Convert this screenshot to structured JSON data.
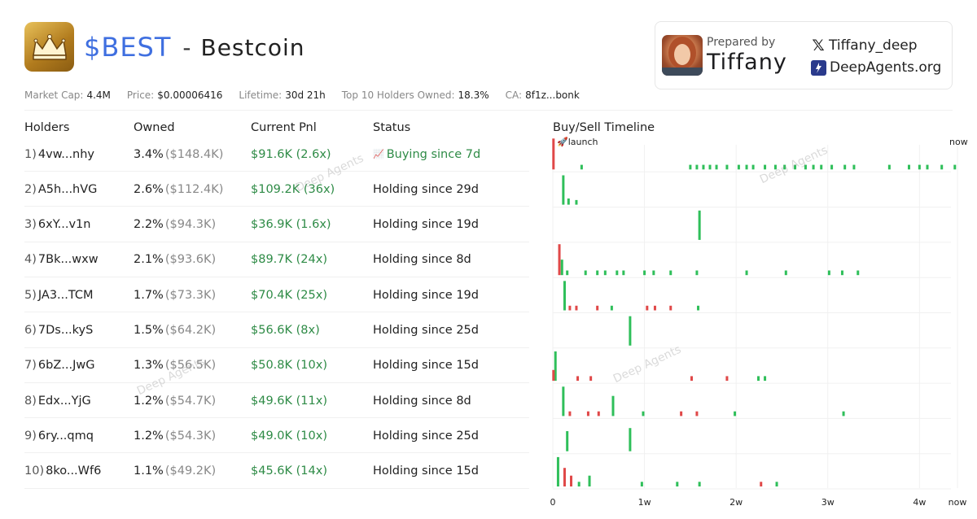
{
  "header": {
    "ticker": "$BEST",
    "separator": "-",
    "coin_name": "Bestcoin"
  },
  "prepared": {
    "label": "Prepared by",
    "name": "Tiffany",
    "x_handle": "Tiffany_deep",
    "site": "DeepAgents.org"
  },
  "stats": [
    {
      "label": "Market Cap:",
      "value": "4.4M"
    },
    {
      "label": "Price:",
      "value": "$0.00006416"
    },
    {
      "label": "Lifetime:",
      "value": "30d 21h"
    },
    {
      "label": "Top 10 Holders Owned:",
      "value": "18.3%"
    },
    {
      "label": "CA:",
      "value": "8f1z...bonk"
    }
  ],
  "table": {
    "headers": {
      "holders": "Holders",
      "owned": "Owned",
      "pnl": "Current Pnl",
      "status": "Status"
    },
    "rows": [
      {
        "rank": "1)",
        "addr": "4vw...nhy",
        "pct": "3.4%",
        "usd": "($148.4K)",
        "pnl": "$91.6K (2.6x)",
        "status": "Buying since 7d",
        "buying": true
      },
      {
        "rank": "2)",
        "addr": "A5h...hVG",
        "pct": "2.6%",
        "usd": "($112.4K)",
        "pnl": "$109.2K (36x)",
        "status": "Holding since 29d",
        "buying": false
      },
      {
        "rank": "3)",
        "addr": "6xY...v1n",
        "pct": "2.2%",
        "usd": "($94.3K)",
        "pnl": "$36.9K (1.6x)",
        "status": "Holding since 19d",
        "buying": false
      },
      {
        "rank": "4)",
        "addr": "7Bk...wxw",
        "pct": "2.1%",
        "usd": "($93.6K)",
        "pnl": "$89.7K (24x)",
        "status": "Holding since 8d",
        "buying": false
      },
      {
        "rank": "5)",
        "addr": "JA3...TCM",
        "pct": "1.7%",
        "usd": "($73.3K)",
        "pnl": "$70.4K (25x)",
        "status": "Holding since 19d",
        "buying": false
      },
      {
        "rank": "6)",
        "addr": "7Ds...kyS",
        "pct": "1.5%",
        "usd": "($64.2K)",
        "pnl": "$56.6K (8x)",
        "status": "Holding since 25d",
        "buying": false
      },
      {
        "rank": "7)",
        "addr": "6bZ...JwG",
        "pct": "1.3%",
        "usd": "($56.5K)",
        "pnl": "$50.8K (10x)",
        "status": "Holding since 15d",
        "buying": false
      },
      {
        "rank": "8)",
        "addr": "Edx...YjG",
        "pct": "1.2%",
        "usd": "($54.7K)",
        "pnl": "$49.6K (11x)",
        "status": "Holding since 8d",
        "buying": false
      },
      {
        "rank": "9)",
        "addr": "6ry...qmq",
        "pct": "1.2%",
        "usd": "($54.3K)",
        "pnl": "$49.0K (10x)",
        "status": "Holding since 25d",
        "buying": false
      },
      {
        "rank": "10)",
        "addr": "8ko...Wf6",
        "pct": "1.1%",
        "usd": "($49.2K)",
        "pnl": "$45.6K (14x)",
        "status": "Holding since 15d",
        "buying": false
      }
    ]
  },
  "timeline": {
    "title": "Buy/Sell Timeline",
    "launch_label": "launch",
    "now_label": "now",
    "x_ticks": [
      "0",
      "1w",
      "2w",
      "3w",
      "4w",
      "now"
    ]
  },
  "watermark": "Deep Agents",
  "colors": {
    "buy": "#2fbf5a",
    "sell": "#e04848",
    "ticker": "#3f6fe0",
    "pnl": "#2e8b46"
  },
  "chart_data": {
    "type": "scatter",
    "title": "Buy/Sell Timeline",
    "x_unit": "days since launch",
    "xlim": [
      0,
      30.9
    ],
    "x_ticks": [
      0,
      7,
      14,
      21,
      28
    ],
    "x_tick_labels": [
      "0",
      "1w",
      "2w",
      "3w",
      "4w"
    ],
    "end_label": "now",
    "series": [
      {
        "name": "buy",
        "color": "#2fbf5a"
      },
      {
        "name": "sell",
        "color": "#e04848"
      }
    ],
    "rows": [
      {
        "holder": "4vw...nhy",
        "events": [
          {
            "t": 0.05,
            "type": "sell",
            "size": 1.0
          },
          {
            "t": 2.2,
            "type": "buy",
            "size": 0.15
          },
          {
            "t": 10.5,
            "type": "buy",
            "size": 0.15
          },
          {
            "t": 11.0,
            "type": "buy",
            "size": 0.15
          },
          {
            "t": 11.5,
            "type": "buy",
            "size": 0.15
          },
          {
            "t": 12.0,
            "type": "buy",
            "size": 0.15
          },
          {
            "t": 12.5,
            "type": "buy",
            "size": 0.15
          },
          {
            "t": 13.3,
            "type": "buy",
            "size": 0.15
          },
          {
            "t": 14.2,
            "type": "buy",
            "size": 0.15
          },
          {
            "t": 14.8,
            "type": "buy",
            "size": 0.15
          },
          {
            "t": 15.3,
            "type": "buy",
            "size": 0.15
          },
          {
            "t": 16.2,
            "type": "buy",
            "size": 0.15
          },
          {
            "t": 17.0,
            "type": "buy",
            "size": 0.15
          },
          {
            "t": 17.7,
            "type": "buy",
            "size": 0.15
          },
          {
            "t": 18.5,
            "type": "buy",
            "size": 0.15
          },
          {
            "t": 19.3,
            "type": "buy",
            "size": 0.15
          },
          {
            "t": 19.9,
            "type": "buy",
            "size": 0.15
          },
          {
            "t": 20.5,
            "type": "buy",
            "size": 0.15
          },
          {
            "t": 21.3,
            "type": "buy",
            "size": 0.15
          },
          {
            "t": 22.3,
            "type": "buy",
            "size": 0.15
          },
          {
            "t": 23.0,
            "type": "buy",
            "size": 0.15
          },
          {
            "t": 25.7,
            "type": "buy",
            "size": 0.15
          },
          {
            "t": 27.2,
            "type": "buy",
            "size": 0.15
          },
          {
            "t": 28.0,
            "type": "buy",
            "size": 0.15
          },
          {
            "t": 28.6,
            "type": "buy",
            "size": 0.15
          },
          {
            "t": 29.7,
            "type": "buy",
            "size": 0.15
          },
          {
            "t": 30.7,
            "type": "buy",
            "size": 0.15
          }
        ]
      },
      {
        "holder": "A5h...hVG",
        "events": [
          {
            "t": 0.8,
            "type": "buy",
            "size": 0.95
          },
          {
            "t": 1.2,
            "type": "buy",
            "size": 0.2
          },
          {
            "t": 1.8,
            "type": "buy",
            "size": 0.15
          }
        ]
      },
      {
        "holder": "6xY...v1n",
        "events": [
          {
            "t": 11.2,
            "type": "buy",
            "size": 0.95
          }
        ]
      },
      {
        "holder": "7Bk...wxw",
        "events": [
          {
            "t": 0.5,
            "type": "sell",
            "size": 1.0
          },
          {
            "t": 0.7,
            "type": "buy",
            "size": 0.5
          },
          {
            "t": 1.1,
            "type": "buy",
            "size": 0.15
          },
          {
            "t": 2.5,
            "type": "buy",
            "size": 0.15
          },
          {
            "t": 3.4,
            "type": "buy",
            "size": 0.15
          },
          {
            "t": 4.0,
            "type": "buy",
            "size": 0.15
          },
          {
            "t": 4.9,
            "type": "buy",
            "size": 0.15
          },
          {
            "t": 5.4,
            "type": "buy",
            "size": 0.15
          },
          {
            "t": 7.0,
            "type": "buy",
            "size": 0.15
          },
          {
            "t": 7.7,
            "type": "buy",
            "size": 0.15
          },
          {
            "t": 9.0,
            "type": "buy",
            "size": 0.15
          },
          {
            "t": 11.0,
            "type": "buy",
            "size": 0.15
          },
          {
            "t": 14.8,
            "type": "buy",
            "size": 0.15
          },
          {
            "t": 17.8,
            "type": "buy",
            "size": 0.15
          },
          {
            "t": 21.1,
            "type": "buy",
            "size": 0.15
          },
          {
            "t": 22.1,
            "type": "buy",
            "size": 0.15
          },
          {
            "t": 23.3,
            "type": "buy",
            "size": 0.15
          }
        ]
      },
      {
        "holder": "JA3...TCM",
        "events": [
          {
            "t": 0.9,
            "type": "buy",
            "size": 0.95
          },
          {
            "t": 1.3,
            "type": "sell",
            "size": 0.15
          },
          {
            "t": 1.8,
            "type": "sell",
            "size": 0.15
          },
          {
            "t": 3.4,
            "type": "sell",
            "size": 0.15
          },
          {
            "t": 4.5,
            "type": "buy",
            "size": 0.15
          },
          {
            "t": 7.2,
            "type": "sell",
            "size": 0.15
          },
          {
            "t": 7.8,
            "type": "sell",
            "size": 0.15
          },
          {
            "t": 9.0,
            "type": "sell",
            "size": 0.15
          },
          {
            "t": 11.1,
            "type": "buy",
            "size": 0.15
          }
        ]
      },
      {
        "holder": "7Ds...kyS",
        "events": [
          {
            "t": 5.9,
            "type": "buy",
            "size": 0.95
          }
        ]
      },
      {
        "holder": "6bZ...JwG",
        "events": [
          {
            "t": 0.2,
            "type": "buy",
            "size": 0.95
          },
          {
            "t": 0.05,
            "type": "sell",
            "size": 0.35
          },
          {
            "t": 1.9,
            "type": "sell",
            "size": 0.15
          },
          {
            "t": 2.9,
            "type": "sell",
            "size": 0.15
          },
          {
            "t": 10.6,
            "type": "sell",
            "size": 0.15
          },
          {
            "t": 13.3,
            "type": "sell",
            "size": 0.15
          },
          {
            "t": 15.7,
            "type": "buy",
            "size": 0.15
          },
          {
            "t": 16.2,
            "type": "buy",
            "size": 0.15
          }
        ]
      },
      {
        "holder": "Edx...YjG",
        "events": [
          {
            "t": 0.8,
            "type": "buy",
            "size": 0.95
          },
          {
            "t": 1.3,
            "type": "sell",
            "size": 0.15
          },
          {
            "t": 2.7,
            "type": "sell",
            "size": 0.15
          },
          {
            "t": 3.5,
            "type": "sell",
            "size": 0.15
          },
          {
            "t": 4.6,
            "type": "buy",
            "size": 0.65
          },
          {
            "t": 6.9,
            "type": "buy",
            "size": 0.15
          },
          {
            "t": 9.8,
            "type": "sell",
            "size": 0.15
          },
          {
            "t": 11.0,
            "type": "sell",
            "size": 0.15
          },
          {
            "t": 13.9,
            "type": "buy",
            "size": 0.15
          },
          {
            "t": 22.2,
            "type": "buy",
            "size": 0.15
          }
        ]
      },
      {
        "holder": "6ry...qmq",
        "events": [
          {
            "t": 1.1,
            "type": "buy",
            "size": 0.65
          },
          {
            "t": 5.9,
            "type": "buy",
            "size": 0.75
          }
        ]
      },
      {
        "holder": "8ko...Wf6",
        "events": [
          {
            "t": 0.4,
            "type": "buy",
            "size": 0.95
          },
          {
            "t": 0.9,
            "type": "sell",
            "size": 0.6
          },
          {
            "t": 1.4,
            "type": "sell",
            "size": 0.35
          },
          {
            "t": 2.0,
            "type": "buy",
            "size": 0.15
          },
          {
            "t": 2.8,
            "type": "buy",
            "size": 0.35
          },
          {
            "t": 6.8,
            "type": "buy",
            "size": 0.15
          },
          {
            "t": 9.5,
            "type": "buy",
            "size": 0.15
          },
          {
            "t": 11.2,
            "type": "buy",
            "size": 0.15
          },
          {
            "t": 15.9,
            "type": "sell",
            "size": 0.15
          },
          {
            "t": 17.1,
            "type": "buy",
            "size": 0.15
          }
        ]
      }
    ]
  }
}
